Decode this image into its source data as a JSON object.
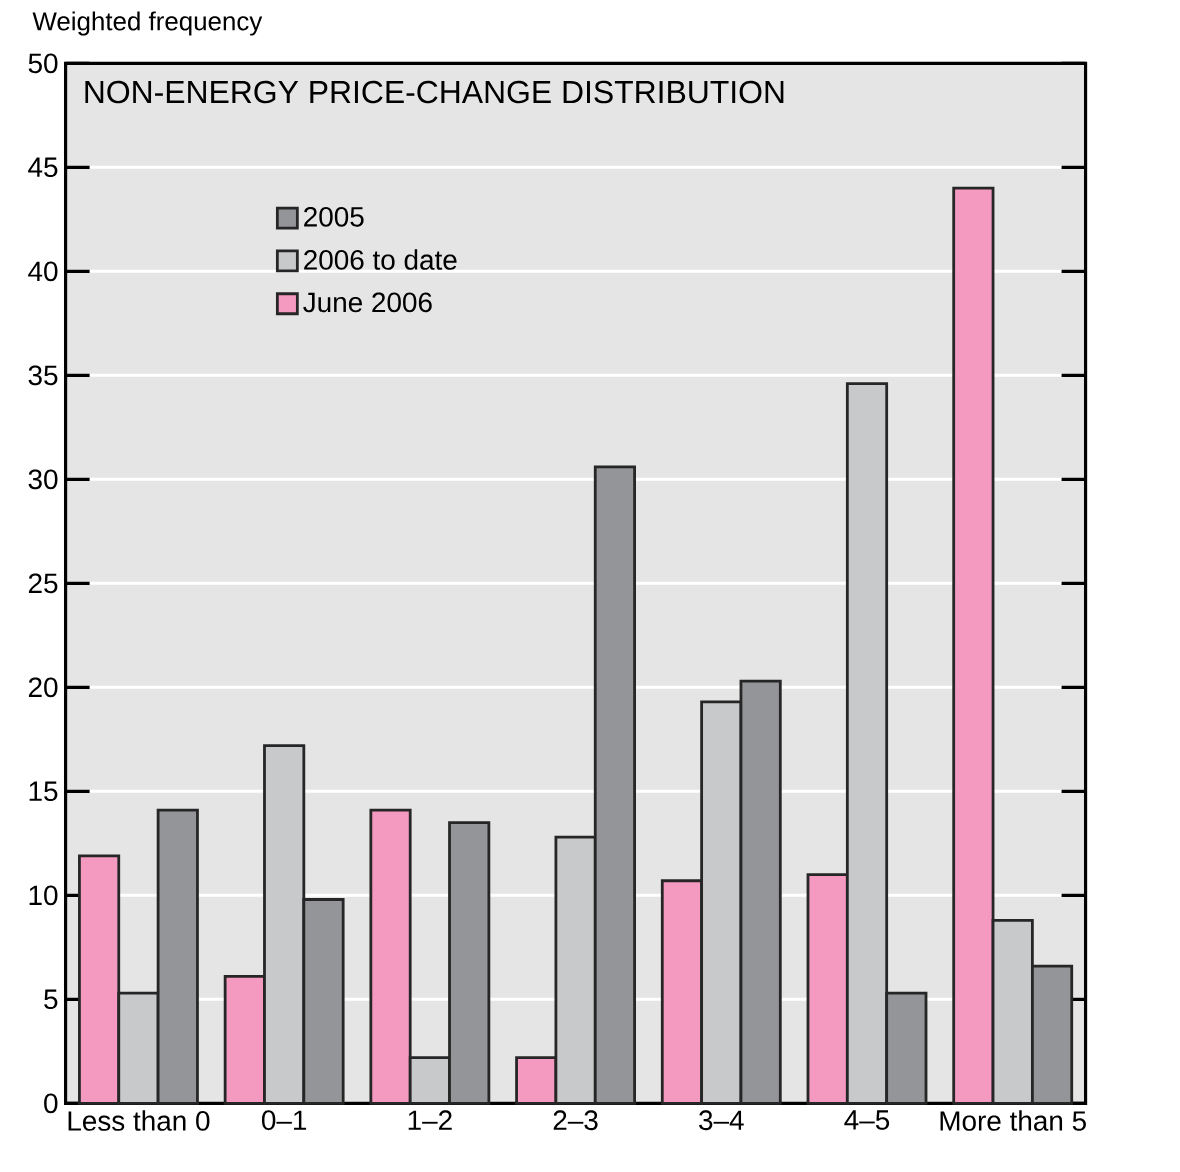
{
  "chart_data": {
    "type": "bar",
    "title": "NON-ENERGY PRICE-CHANGE DISTRIBUTION",
    "ylabel": "Weighted frequency",
    "categories": [
      "Less than 0",
      "0–1",
      "1–2",
      "2–3",
      "3–4",
      "4–5",
      "More than 5"
    ],
    "series": [
      {
        "name": "June 2006",
        "color": "#f49ac1",
        "values": [
          11.9,
          6.1,
          14.1,
          2.2,
          10.7,
          11.0,
          44.0
        ]
      },
      {
        "name": "2006 to date",
        "color": "#c8c9cb",
        "values": [
          5.3,
          17.2,
          2.2,
          12.8,
          19.3,
          34.6,
          8.8
        ]
      },
      {
        "name": "2005",
        "color": "#939598",
        "values": [
          14.1,
          9.8,
          13.5,
          30.6,
          20.3,
          5.3,
          6.6
        ]
      }
    ],
    "ylim": [
      0,
      50
    ],
    "yticks": [
      0,
      5,
      10,
      15,
      20,
      25,
      30,
      35,
      40,
      45,
      50
    ],
    "grid": "y",
    "legend": "top left"
  }
}
